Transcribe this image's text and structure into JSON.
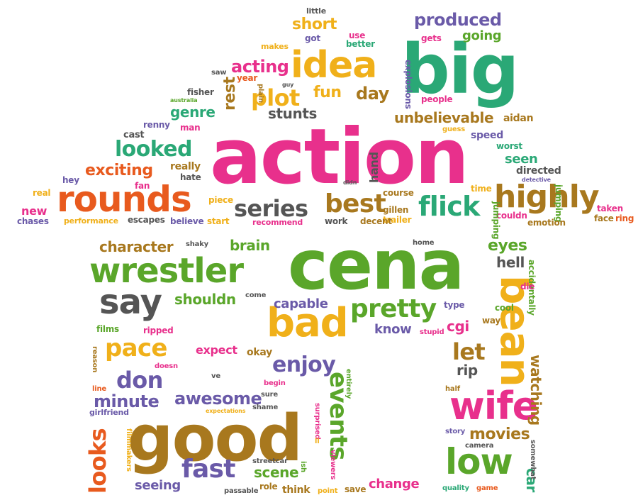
{
  "words": {
    "action": "action",
    "cena": "cena",
    "good": "good",
    "big": "big",
    "idea": "idea",
    "rounds": "rounds",
    "wrestler": "wrestler",
    "bad": "bad",
    "wife": "wife",
    "bean": "bean",
    "low": "low",
    "say": "say",
    "flick": "flick",
    "highly": "highly",
    "best": "best",
    "series": "series",
    "pretty": "pretty",
    "looked": "looked",
    "events": "events",
    "plot": "plot",
    "fast": "fast",
    "pace": "pace",
    "enjoy": "enjoy",
    "don": "don",
    "let": "let",
    "looks": "looks",
    "awesome": "awesome",
    "produced": "produced",
    "unbelievable": "unbelievable",
    "short": "short",
    "acting": "acting",
    "fun": "fun",
    "day": "day",
    "genre": "genre",
    "stunts": "stunts",
    "rest": "rest",
    "exciting": "exciting",
    "character": "character",
    "brain": "brain",
    "eyes": "eyes",
    "hell": "hell",
    "shouldn": "shouldn",
    "capable": "capable",
    "know": "know",
    "cgi": "cgi",
    "minute": "minute",
    "scene": "scene",
    "seeing": "seeing",
    "change": "change",
    "movies": "movies",
    "rip": "rip",
    "watching": "watching",
    "car": "car",
    "expect": "expect",
    "okay": "okay",
    "seen": "seen",
    "directed": "directed",
    "hand": "hand",
    "going": "going",
    "gets": "gets",
    "people": "people",
    "speed": "speed",
    "worst": "worst",
    "explosions": "explosions",
    "guess": "guess",
    "aidan": "aidan",
    "detective": "detective",
    "time": "time",
    "didn": "didn",
    "jumping": "jumping",
    "couldn": "couldn",
    "emotion": "emotion",
    "taken": "taken",
    "face": "face",
    "ring": "ring",
    "trailer": "trailer",
    "decent": "decent",
    "gillen": "gillen",
    "course": "course",
    "work": "work",
    "recommend": "recommend",
    "start": "start",
    "believe": "believe",
    "escapes": "escapes",
    "performance": "performance",
    "chases": "chases",
    "new": "new",
    "real": "real",
    "hey": "hey",
    "fan": "fan",
    "piece": "piece",
    "hate": "hate",
    "really": "really",
    "cast": "cast",
    "renny": "renny",
    "man": "man",
    "australia": "australia",
    "fisher": "fisher",
    "saw": "saw",
    "year": "year",
    "plain": "plain",
    "guy": "guy",
    "makes": "makes",
    "got": "got",
    "little": "little",
    "use": "use",
    "better": "better",
    "shaky": "shaky",
    "home": "home",
    "accidentally": "accidentally",
    "die": "die",
    "cool": "cool",
    "type": "type",
    "way": "way",
    "stupid": "stupid",
    "come": "come",
    "films": "films",
    "ripped": "ripped",
    "reason": "reason",
    "doesn": "doesn",
    "ve": "ve",
    "line": "line",
    "begin": "begin",
    "entirely": "entirely",
    "sure": "sure",
    "girlfriend": "girlfriend",
    "expectations": "expectations",
    "shame": "shame",
    "surprised": "surprised",
    "ll": "ll",
    "filmmakers": "filmmakers",
    "streetcar": "streetcar",
    "ish": "ish",
    "viewers": "viewers",
    "role": "role",
    "passable": "passable",
    "think": "think",
    "point": "point",
    "save": "save",
    "quality": "quality",
    "game": "game",
    "story": "story",
    "camera": "camera",
    "somewhat": "somewhat",
    "half": "half"
  }
}
